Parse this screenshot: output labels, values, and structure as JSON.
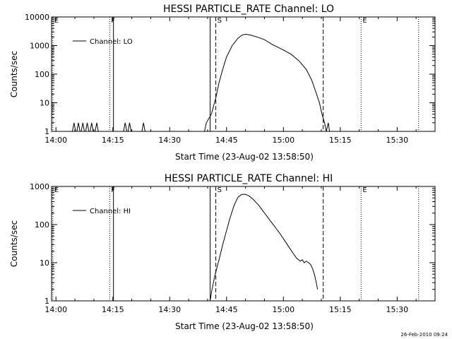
{
  "footer": {
    "timestamp": "26-Feb-2010 09:24"
  },
  "chart_data": [
    {
      "type": "line",
      "title": "HESSI PARTICLE_RATE Channel: LO",
      "xlabel": "Start Time (23-Aug-02 13:58:50)",
      "ylabel": "Counts/sec",
      "yscale": "log",
      "xlim": [
        "13:58:50",
        "15:40:00"
      ],
      "ylim": [
        1,
        10000
      ],
      "x_ticks": [
        "14:00",
        "14:15",
        "14:30",
        "14:45",
        "15:00",
        "15:15",
        "15:30"
      ],
      "y_ticks": [
        "1",
        "10",
        "100",
        "1000",
        "10000"
      ],
      "legend": {
        "position": "top-left",
        "label": "Channel: LO"
      },
      "markers": [
        {
          "label": "E",
          "time": "13:59:10",
          "style": "dotted"
        },
        {
          "label": "F",
          "time": "14:14:10",
          "style": "dotted"
        },
        {
          "label": "",
          "time": "14:15:10",
          "style": "solid"
        },
        {
          "label": "",
          "time": "14:40:40",
          "style": "solid"
        },
        {
          "label": "S",
          "time": "14:42:10",
          "style": "dashed"
        },
        {
          "label": "",
          "time": "15:10:30",
          "style": "dashed"
        },
        {
          "label": "E",
          "time": "15:20:30",
          "style": "dotted"
        },
        {
          "label": "",
          "time": "15:35:40",
          "style": "dotted"
        }
      ],
      "series": [
        {
          "name": "Channel: LO",
          "segments": [
            [
              [
                "14:04:20",
                1
              ],
              [
                "14:04:45",
                2
              ],
              [
                "14:05:10",
                1
              ]
            ],
            [
              [
                "14:05:30",
                1
              ],
              [
                "14:05:55",
                2
              ],
              [
                "14:06:20",
                1
              ]
            ],
            [
              [
                "14:06:40",
                1
              ],
              [
                "14:07:05",
                2
              ],
              [
                "14:07:30",
                1
              ]
            ],
            [
              [
                "14:07:50",
                1
              ],
              [
                "14:08:15",
                2
              ],
              [
                "14:08:40",
                1
              ]
            ],
            [
              [
                "14:09:00",
                1
              ],
              [
                "14:09:25",
                2
              ],
              [
                "14:09:50",
                1
              ]
            ],
            [
              [
                "14:10:20",
                1
              ],
              [
                "14:10:45",
                2
              ],
              [
                "14:11:10",
                1
              ]
            ],
            [
              [
                "14:17:50",
                1
              ],
              [
                "14:18:15",
                2
              ],
              [
                "14:18:40",
                1
              ]
            ],
            [
              [
                "14:19:00",
                1
              ],
              [
                "14:19:25",
                2
              ],
              [
                "14:19:50",
                1
              ]
            ],
            [
              [
                "14:22:40",
                1
              ],
              [
                "14:23:05",
                2
              ],
              [
                "14:23:30",
                1
              ]
            ],
            [
              [
                "14:39:10",
                1
              ],
              [
                "14:39:40",
                2
              ],
              [
                "14:41:00",
                4
              ],
              [
                "14:42:10",
                15
              ],
              [
                "14:43:00",
                50
              ],
              [
                "14:44:00",
                150
              ],
              [
                "14:45:00",
                400
              ],
              [
                "14:46:30",
                1000
              ],
              [
                "14:48:00",
                1800
              ],
              [
                "14:49:00",
                2300
              ],
              [
                "14:50:00",
                2500
              ],
              [
                "14:51:30",
                2300
              ],
              [
                "14:53:00",
                2000
              ],
              [
                "14:55:00",
                1600
              ],
              [
                "14:57:00",
                1100
              ],
              [
                "15:00:00",
                700
              ],
              [
                "15:02:00",
                500
              ],
              [
                "15:04:00",
                300
              ],
              [
                "15:06:00",
                150
              ],
              [
                "15:07:30",
                60
              ],
              [
                "15:08:30",
                25
              ],
              [
                "15:09:30",
                10
              ],
              [
                "15:10:10",
                4
              ],
              [
                "15:10:50",
                2
              ],
              [
                "15:11:20",
                1
              ],
              [
                "15:11:50",
                2
              ],
              [
                "15:12:10",
                1
              ]
            ]
          ]
        }
      ]
    },
    {
      "type": "line",
      "title": "HESSI PARTICLE_RATE Channel: HI",
      "xlabel": "Start Time (23-Aug-02 13:58:50)",
      "ylabel": "Counts/sec",
      "yscale": "log",
      "xlim": [
        "13:58:50",
        "15:40:00"
      ],
      "ylim": [
        1,
        1000
      ],
      "x_ticks": [
        "14:00",
        "14:15",
        "14:30",
        "14:45",
        "15:00",
        "15:15",
        "15:30"
      ],
      "y_ticks": [
        "1",
        "10",
        "100",
        "1000"
      ],
      "legend": {
        "position": "top-left",
        "label": "Channel: HI"
      },
      "markers": [
        {
          "label": "E",
          "time": "13:59:10",
          "style": "dotted"
        },
        {
          "label": "F",
          "time": "14:14:10",
          "style": "dotted"
        },
        {
          "label": "",
          "time": "14:15:10",
          "style": "solid"
        },
        {
          "label": "",
          "time": "14:40:40",
          "style": "solid"
        },
        {
          "label": "S",
          "time": "14:42:10",
          "style": "dashed"
        },
        {
          "label": "",
          "time": "15:10:30",
          "style": "dashed"
        },
        {
          "label": "E",
          "time": "15:20:30",
          "style": "dotted"
        },
        {
          "label": "",
          "time": "15:35:40",
          "style": "dotted"
        }
      ],
      "series": [
        {
          "name": "Channel: HI",
          "segments": [
            [
              [
                "14:40:40",
                1
              ],
              [
                "14:41:10",
                2
              ],
              [
                "14:42:00",
                5
              ],
              [
                "14:43:00",
                12
              ],
              [
                "14:44:00",
                30
              ],
              [
                "14:45:00",
                70
              ],
              [
                "14:46:00",
                160
              ],
              [
                "14:47:00",
                320
              ],
              [
                "14:48:00",
                520
              ],
              [
                "14:49:00",
                620
              ],
              [
                "14:50:00",
                620
              ],
              [
                "14:51:00",
                560
              ],
              [
                "14:52:00",
                460
              ],
              [
                "14:53:30",
                320
              ],
              [
                "14:55:00",
                200
              ],
              [
                "14:57:00",
                110
              ],
              [
                "14:59:00",
                60
              ],
              [
                "15:01:00",
                30
              ],
              [
                "15:02:30",
                18
              ],
              [
                "15:03:30",
                13
              ],
              [
                "15:04:30",
                11
              ],
              [
                "15:05:00",
                12
              ],
              [
                "15:05:30",
                10
              ],
              [
                "15:06:00",
                11
              ],
              [
                "15:06:40",
                10
              ],
              [
                "15:07:10",
                9
              ],
              [
                "15:07:40",
                7
              ],
              [
                "15:08:10",
                5
              ],
              [
                "15:08:40",
                3
              ],
              [
                "15:09:00",
                2
              ]
            ]
          ]
        }
      ]
    }
  ]
}
